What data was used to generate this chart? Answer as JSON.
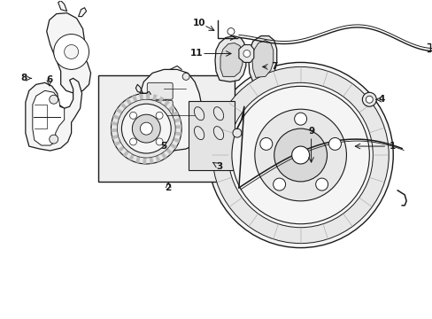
{
  "bg_color": "#ffffff",
  "line_color": "#1a1a1a",
  "fill_light": "#f5f5f5",
  "fill_mid": "#e8e8e8",
  "fill_dark": "#d8d8d8",
  "figsize": [
    4.89,
    3.6
  ],
  "dpi": 100
}
